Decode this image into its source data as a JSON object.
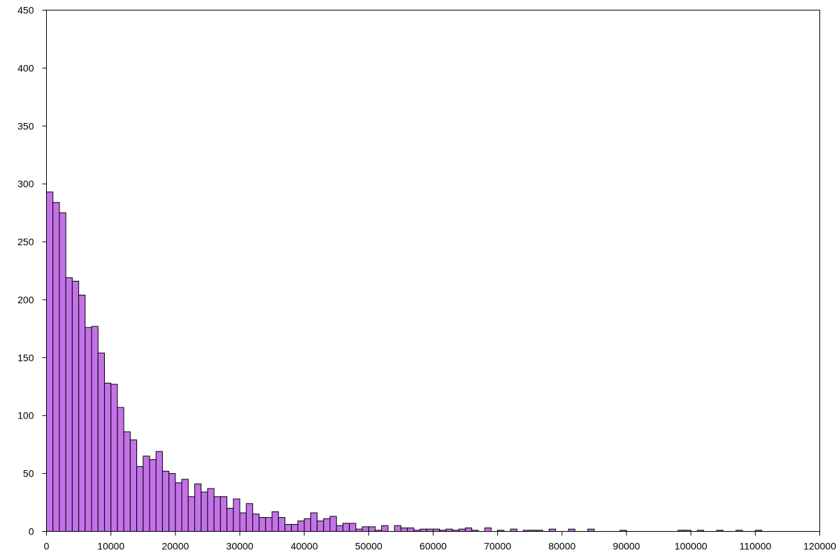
{
  "chart_data": {
    "type": "histogram",
    "title": "",
    "xlabel": "",
    "ylabel": "",
    "xlim": [
      0,
      120000
    ],
    "ylim": [
      0,
      450
    ],
    "x_ticks": [
      "0",
      "10000",
      "20000",
      "30000",
      "40000",
      "50000",
      "60000",
      "70000",
      "80000",
      "90000",
      "100000",
      "110000",
      "120000"
    ],
    "y_ticks": [
      "0",
      "50",
      "100",
      "150",
      "200",
      "250",
      "300",
      "350",
      "400",
      "450"
    ],
    "bin_width": 1000,
    "bin_start": 0,
    "values": [
      293,
      284,
      275,
      219,
      216,
      204,
      176,
      177,
      154,
      128,
      127,
      107,
      86,
      79,
      56,
      65,
      62,
      69,
      52,
      50,
      42,
      45,
      30,
      41,
      34,
      37,
      30,
      30,
      20,
      28,
      16,
      24,
      15,
      12,
      12,
      17,
      12,
      6,
      6,
      9,
      11,
      16,
      9,
      11,
      13,
      5,
      7,
      7,
      2,
      4,
      4,
      1,
      5,
      0,
      5,
      3,
      3,
      1,
      2,
      2,
      2,
      1,
      2,
      1,
      2,
      3,
      1,
      0,
      3,
      0,
      1,
      0,
      2,
      0,
      1,
      1,
      1,
      0,
      2,
      0,
      0,
      2,
      0,
      0,
      2,
      0,
      0,
      0,
      0,
      1,
      0,
      0,
      0,
      0,
      0,
      0,
      0,
      0,
      1,
      1,
      0,
      1,
      0,
      0,
      1,
      0,
      0,
      1,
      0,
      0,
      1,
      0,
      0,
      0,
      0,
      0,
      0,
      0,
      0,
      0
    ],
    "grid": false,
    "legend": "none"
  },
  "colors": {
    "bar_fill": "#c472e8",
    "bar_stroke": "#000000",
    "axis": "#000000",
    "background": "#ffffff"
  }
}
